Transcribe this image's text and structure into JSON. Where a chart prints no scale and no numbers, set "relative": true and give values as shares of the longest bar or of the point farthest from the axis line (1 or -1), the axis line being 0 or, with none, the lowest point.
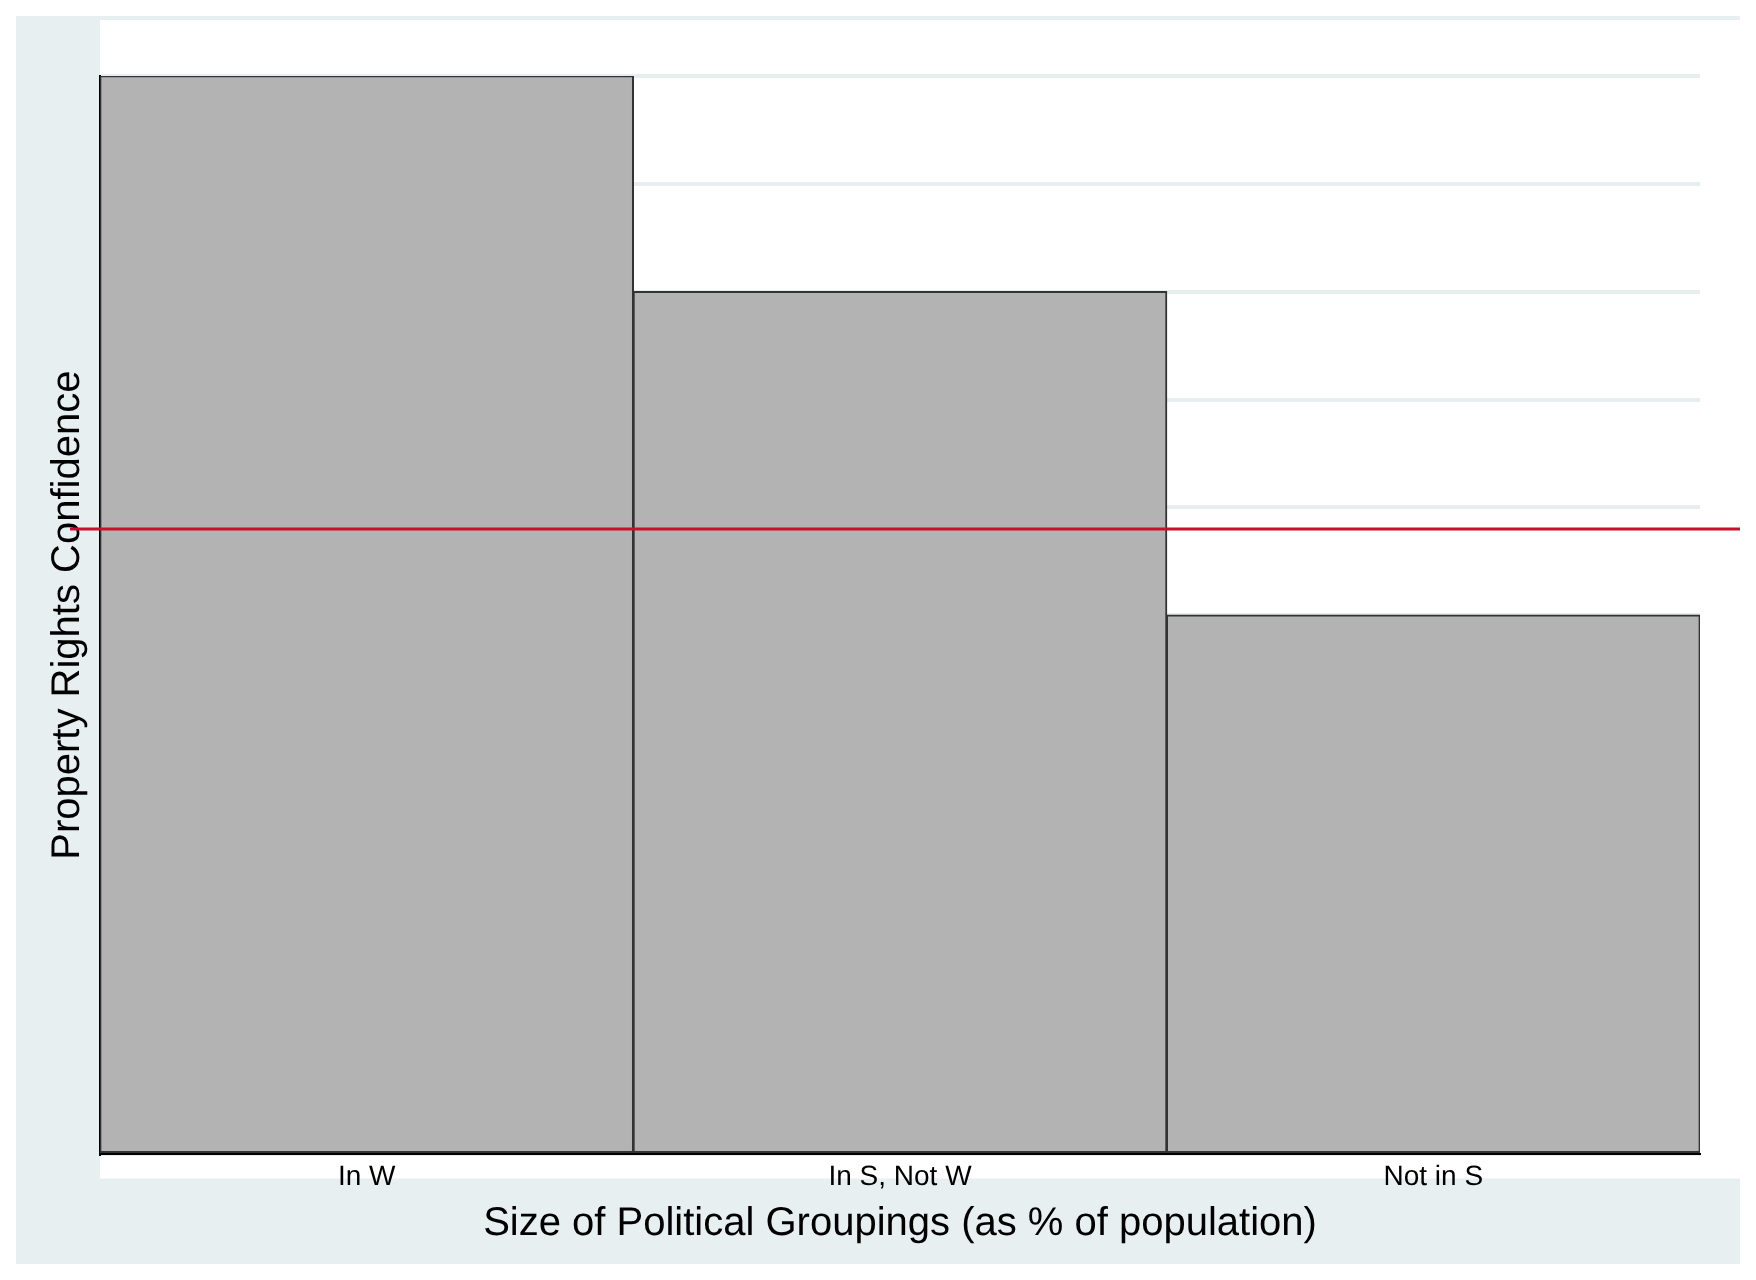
{
  "chart_data": {
    "type": "bar",
    "relative": true,
    "xlabel": "Size of Political Groupings (as % of population)",
    "ylabel": "Property Rights Confidence",
    "categories": [
      "In W",
      "In S, Not W",
      "Not in S"
    ],
    "series": [
      {
        "color": "#b3b3b3",
        "values": [
          1,
          0.8,
          0.5
        ]
      }
    ],
    "ref_lines": [
      {
        "axis": "y",
        "value": 0.58,
        "color": "#c8102e"
      }
    ],
    "grid": "y",
    "legend": false
  }
}
